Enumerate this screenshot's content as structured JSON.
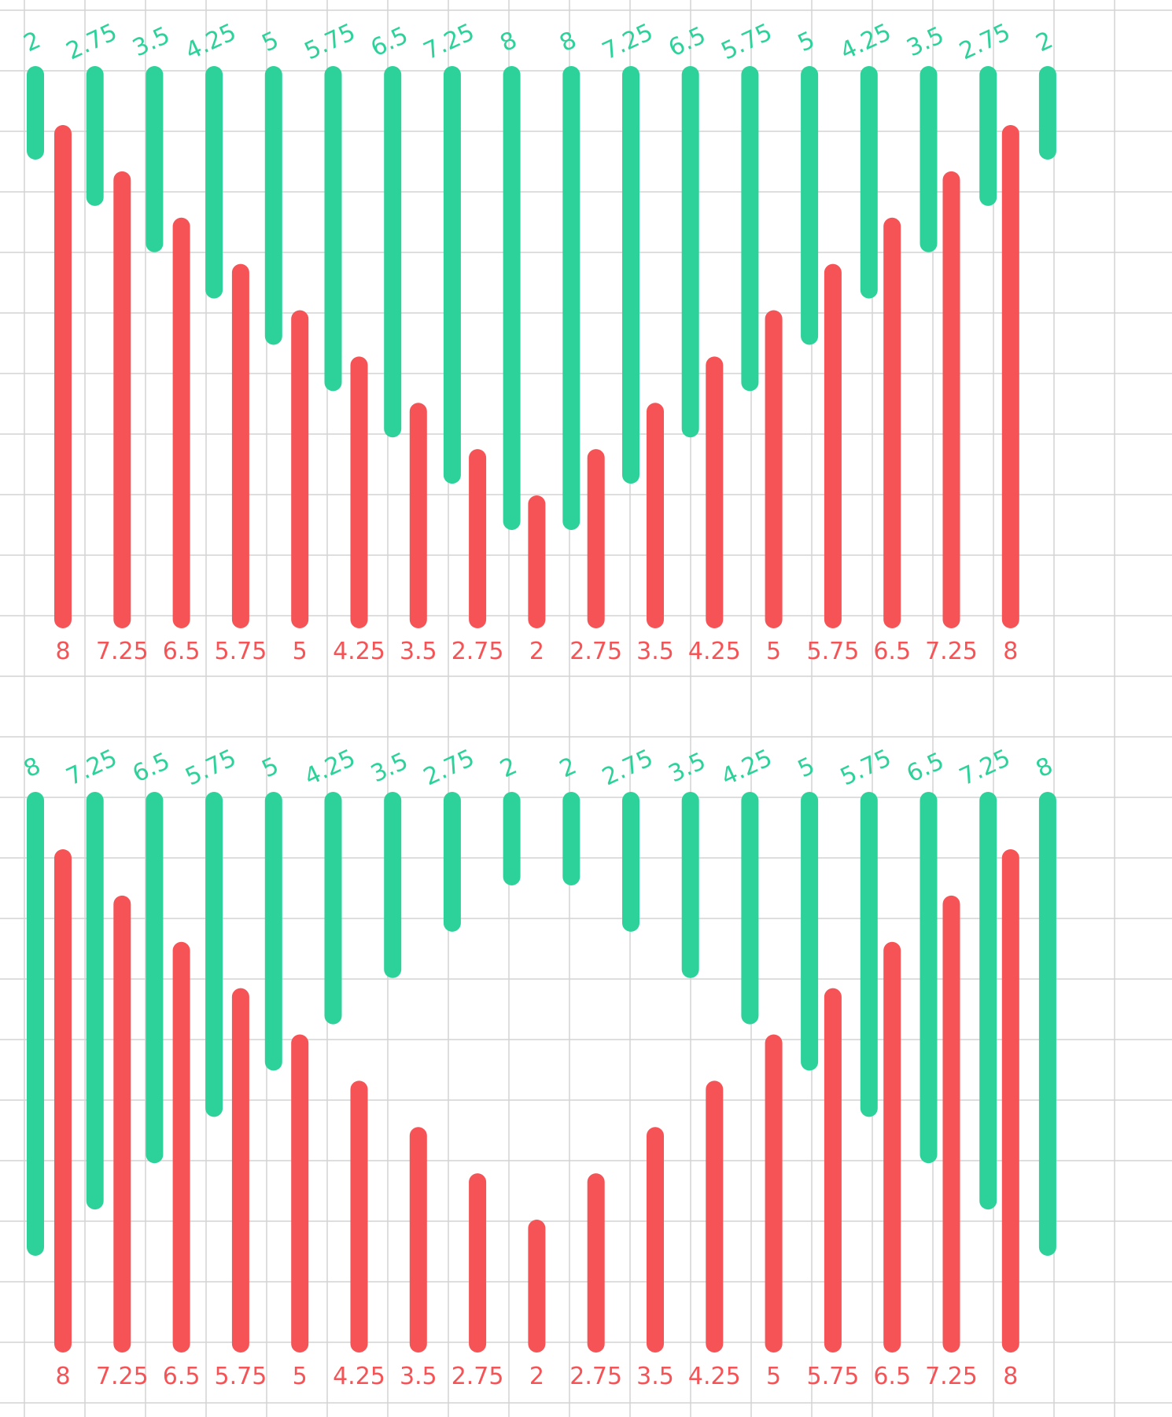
{
  "colors": {
    "green": "#2dd29b",
    "red": "#f55355",
    "grid": "#d4d4d4",
    "background": "#ffffff"
  },
  "chart_data": [
    {
      "type": "bar",
      "title": "",
      "grid": true,
      "series": [
        {
          "color": "green",
          "values": [
            2,
            2.75,
            3.5,
            4.25,
            5,
            5.75,
            6.5,
            7.25,
            8,
            8,
            7.25,
            6.5,
            5.75,
            5,
            4.25,
            3.5,
            2.75,
            2
          ],
          "labels": [
            "2",
            "2.75",
            "3.5",
            "4.25",
            "5",
            "5.75",
            "6.5",
            "7.25",
            "8",
            "8",
            "7.25",
            "6.5",
            "5.75",
            "5",
            "4.25",
            "3.5",
            "2.75",
            "2"
          ]
        },
        {
          "color": "red",
          "values": [
            8,
            7.25,
            6.5,
            5.75,
            5,
            4.25,
            3.5,
            2.75,
            2,
            2.75,
            3.5,
            4.25,
            5,
            5.75,
            6.5,
            7.25,
            8
          ],
          "labels": [
            "8",
            "7.25",
            "6.5",
            "5.75",
            "5",
            "4.25",
            "3.5",
            "2.75",
            "2",
            "2.75",
            "3.5",
            "4.25",
            "5",
            "5.75",
            "6.5",
            "7.25",
            "8"
          ]
        }
      ]
    },
    {
      "type": "bar",
      "title": "",
      "grid": true,
      "series": [
        {
          "color": "green",
          "values": [
            8,
            7.25,
            6.5,
            5.75,
            5,
            4.25,
            3.5,
            2.75,
            2,
            2,
            2.75,
            3.5,
            4.25,
            5,
            5.75,
            6.5,
            7.25,
            8
          ],
          "labels": [
            "8",
            "7.25",
            "6.5",
            "5.75",
            "5",
            "4.25",
            "3.5",
            "2.75",
            "2",
            "2",
            "2.75",
            "3.5",
            "4.25",
            "5",
            "5.75",
            "6.5",
            "7.25",
            "8"
          ]
        },
        {
          "color": "red",
          "values": [
            8,
            7.25,
            6.5,
            5.75,
            5,
            4.25,
            3.5,
            2.75,
            2,
            2.75,
            3.5,
            4.25,
            5,
            5.75,
            6.5,
            7.25,
            8
          ],
          "labels": [
            "8",
            "7.25",
            "6.5",
            "5.75",
            "5",
            "4.25",
            "3.5",
            "2.75",
            "2",
            "2.75",
            "3.5",
            "4.25",
            "5",
            "5.75",
            "6.5",
            "7.25",
            "8"
          ]
        }
      ]
    }
  ]
}
